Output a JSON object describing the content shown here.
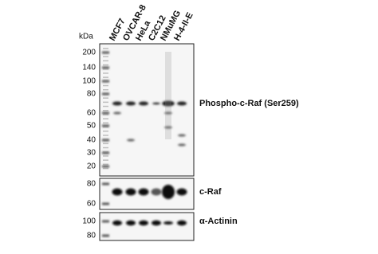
{
  "unit_label": "kDa",
  "lanes": [
    "MCF7",
    "OVCAR-8",
    "HeLa",
    "C2C12",
    "NMuMG",
    "H-4-II-E"
  ],
  "panels": [
    {
      "markers": [
        "200",
        "140",
        "100",
        "80",
        "60",
        "50",
        "40",
        "30",
        "20"
      ],
      "label": "Phospho-c-Raf (Ser259)"
    },
    {
      "markers": [
        "80",
        "60"
      ],
      "label": "c-Raf"
    },
    {
      "markers": [
        "100",
        "80"
      ],
      "label": "α-Actinin"
    }
  ]
}
